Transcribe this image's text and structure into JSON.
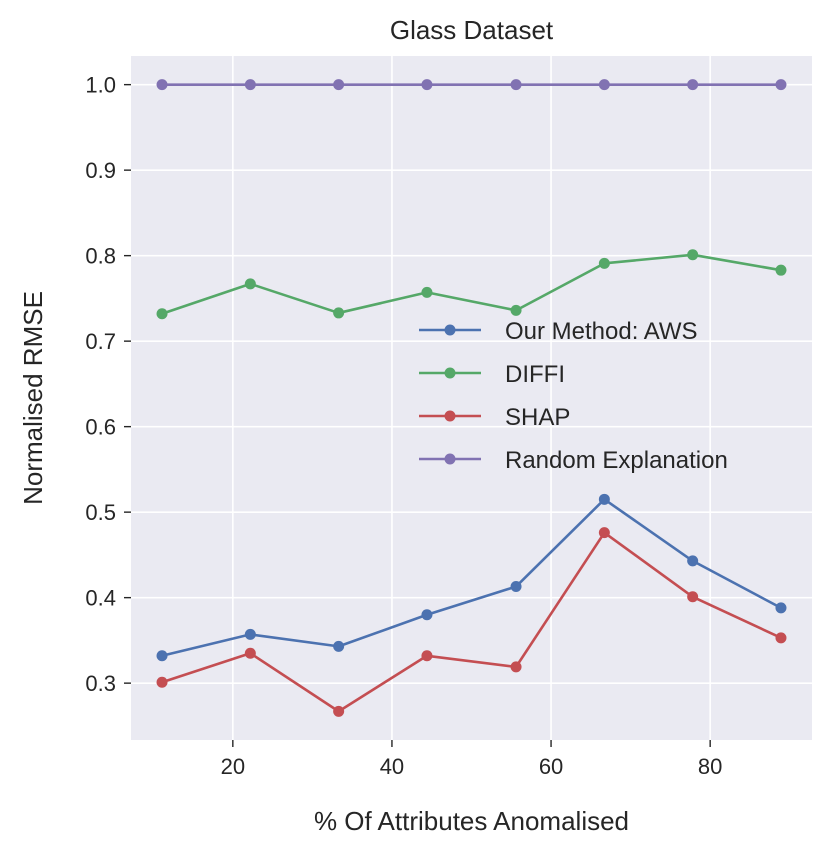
{
  "chart_data": {
    "type": "line",
    "title": "Glass Dataset",
    "xlabel": "% Of Attributes Anomalised",
    "ylabel": "Normalised RMSE",
    "x": [
      11.1,
      22.2,
      33.3,
      44.4,
      55.6,
      66.7,
      77.8,
      88.9
    ],
    "xlim": [
      7.2,
      92.8
    ],
    "ylim": [
      0.2335,
      1.0335
    ],
    "xticks": [
      20,
      40,
      60,
      80
    ],
    "xtick_labels": [
      "20",
      "40",
      "60",
      "80"
    ],
    "yticks": [
      0.3,
      0.4,
      0.5,
      0.6,
      0.7,
      0.8,
      0.9,
      1.0
    ],
    "ytick_labels": [
      "0.3",
      "0.4",
      "0.5",
      "0.6",
      "0.7",
      "0.8",
      "0.9",
      "1.0"
    ],
    "grid": true,
    "legend_position": "center-right",
    "series": [
      {
        "name": "Our Method: AWS",
        "color": "#4c72b0",
        "values": [
          0.332,
          0.357,
          0.343,
          0.38,
          0.413,
          0.515,
          0.443,
          0.388
        ]
      },
      {
        "name": "DIFFI",
        "color": "#55a868",
        "values": [
          0.732,
          0.767,
          0.733,
          0.757,
          0.736,
          0.791,
          0.801,
          0.783
        ]
      },
      {
        "name": "SHAP",
        "color": "#c44e52",
        "values": [
          0.301,
          0.335,
          0.267,
          0.332,
          0.319,
          0.476,
          0.401,
          0.353
        ]
      },
      {
        "name": "Random Explanation",
        "color": "#8172b2",
        "values": [
          1.0,
          1.0,
          1.0,
          1.0,
          1.0,
          1.0,
          1.0,
          1.0
        ]
      }
    ],
    "background_color": "#eaeaf2",
    "grid_color": "#ffffff"
  }
}
